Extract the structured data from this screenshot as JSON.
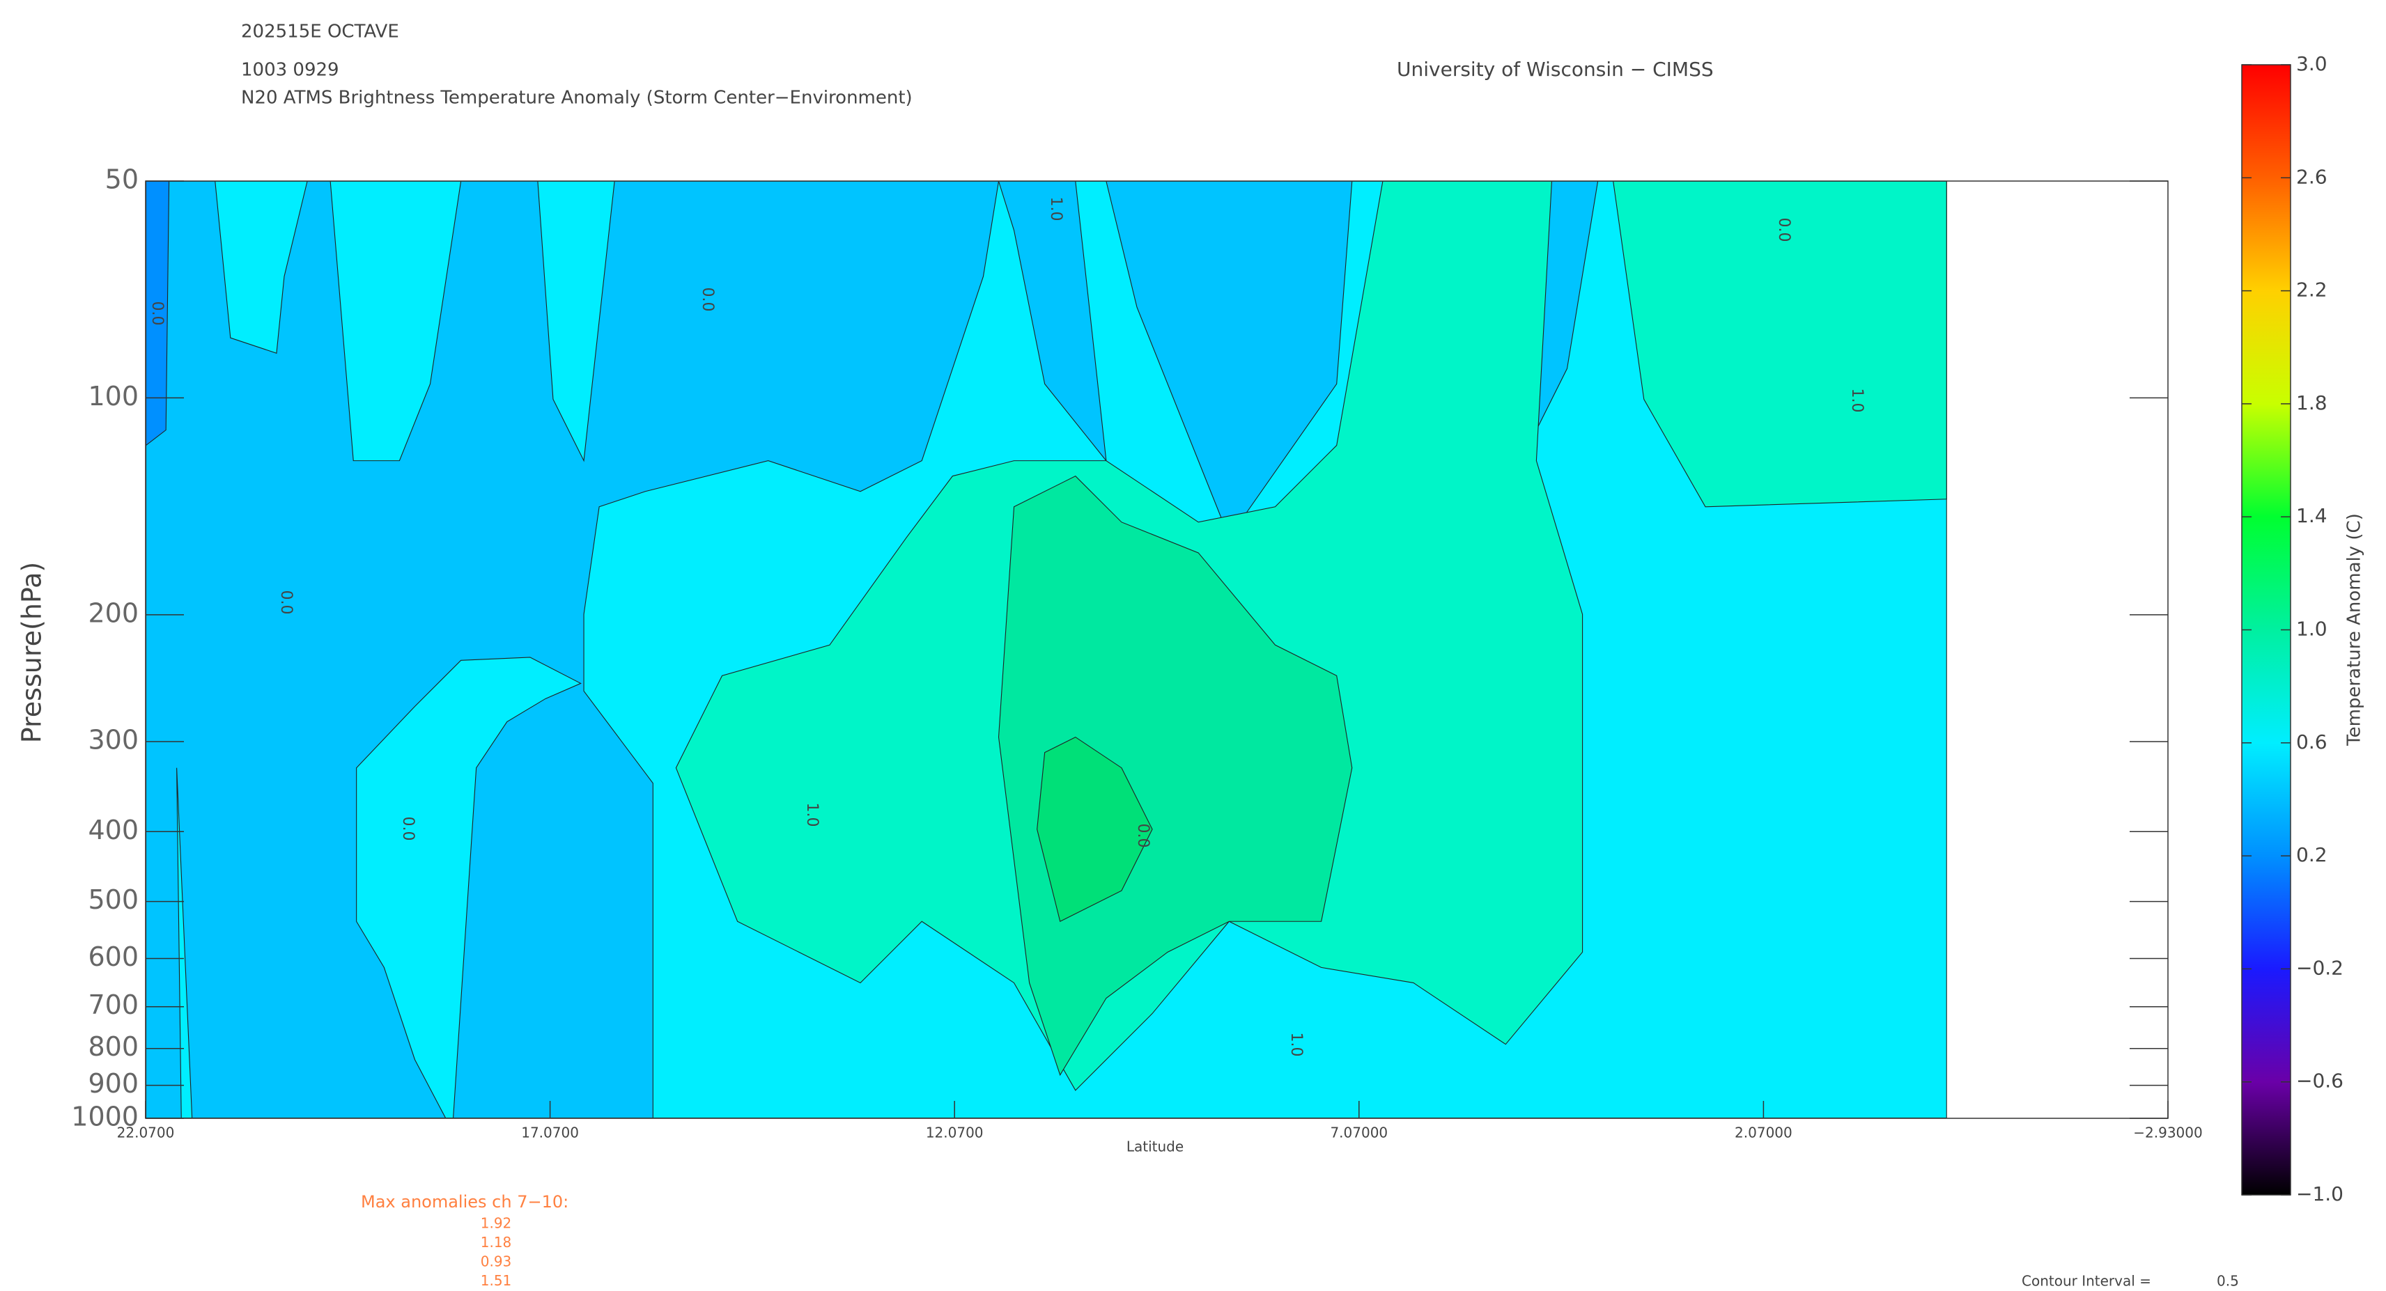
{
  "header": {
    "line1": "202515E OCTAVE",
    "line2": "1003 0929",
    "title": "N20 ATMS Brightness Temperature Anomaly (Storm Center−Environment)",
    "institution": "University of Wisconsin − CIMSS"
  },
  "chart_data": {
    "type": "contour",
    "xlabel": "Latitude",
    "ylabel": "Pressure(hPa)",
    "xlim": [
      22.07,
      -2.93
    ],
    "xticks": [
      {
        "value": 22.07,
        "label": "22.0700"
      },
      {
        "value": 17.07,
        "label": "17.0700"
      },
      {
        "value": 12.07,
        "label": "12.0700"
      },
      {
        "value": 7.07,
        "label": "7.07000"
      },
      {
        "value": 2.07,
        "label": "2.07000"
      },
      {
        "value": -2.93,
        "label": "−2.93000"
      }
    ],
    "ylim": [
      1000,
      50
    ],
    "yscale": "log",
    "yticks": [
      50,
      100,
      200,
      300,
      400,
      500,
      600,
      700,
      800,
      900,
      1000
    ],
    "contour_labels": [
      "0.0",
      "0.0",
      "0.0",
      "0.0",
      "1.0",
      "1.0",
      "1.0",
      "0.0",
      "1.0",
      "0.0"
    ],
    "colorbar": {
      "label": "Temperature Anomaly (C)",
      "lim": [
        -1.0,
        3.0
      ],
      "colors": [
        "#000000",
        "#6a00a8",
        "#1a1aff",
        "#0090ff",
        "#00eeff",
        "#00f0a0",
        "#00ff30",
        "#c8ff00",
        "#ffd000",
        "#ff6000",
        "#ff0000"
      ],
      "ticks": [
        {
          "value": -1.0,
          "label": "−1.0"
        },
        {
          "value": -0.6,
          "label": "−0.6"
        },
        {
          "value": -0.2,
          "label": "−0.2"
        },
        {
          "value": 0.2,
          "label": "0.2"
        },
        {
          "value": 0.6,
          "label": "0.6"
        },
        {
          "value": 1.0,
          "label": "1.0"
        },
        {
          "value": 1.4,
          "label": "1.4"
        },
        {
          "value": 1.8,
          "label": "1.8"
        },
        {
          "value": 2.2,
          "label": "2.2"
        },
        {
          "value": 2.6,
          "label": "2.6"
        },
        {
          "value": 3.0,
          "label": "3.0"
        }
      ]
    },
    "max_anomalies_title": "Max anomalies ch 7−10:",
    "max_anomalies": [
      "1.92",
      "1.18",
      "0.93",
      "1.51"
    ],
    "contour_interval_label": "Contour Interval =",
    "contour_interval": "0.5"
  }
}
